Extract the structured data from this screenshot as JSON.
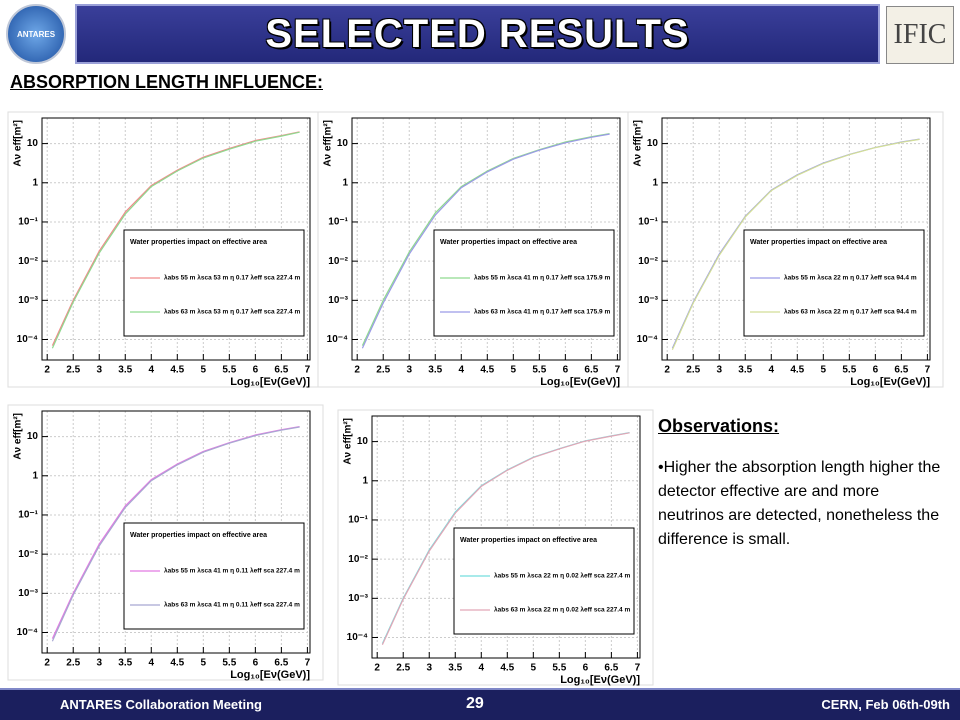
{
  "header": {
    "title": "SELECTED RESULTS",
    "logo_left": "ANTARES",
    "logo_right": "IFIC"
  },
  "section_title": "ABSORPTION LENGTH INFLUENCE:",
  "observations": {
    "title": "Observations:",
    "text": "•Higher the absorption length higher the detector effective are and more neutrinos are detected, nonetheless the difference is small."
  },
  "footer": {
    "left": "ANTARES Collaboration Meeting",
    "center": "29",
    "right": "CERN, Feb 06th-09th"
  },
  "chart_data": [
    {
      "type": "line",
      "log_y": true,
      "grid": true,
      "xlabel": "Log₁₀[Eν(GeV)]",
      "ylabel": "Aν eff[m²]",
      "legend_title": "Water properties impact on effective area",
      "xlim": [
        1.9,
        7.05
      ],
      "ylim": [
        3e-05,
        45
      ],
      "xticks": [
        2,
        2.5,
        3,
        3.5,
        4,
        4.5,
        5,
        5.5,
        6,
        6.5,
        7
      ],
      "yticks": [
        {
          "value": 0.0001,
          "label": "10⁻⁴"
        },
        {
          "value": 0.001,
          "label": "10⁻³"
        },
        {
          "value": 0.01,
          "label": "10⁻²"
        },
        {
          "value": 0.1,
          "label": "10⁻¹"
        },
        1,
        10
      ],
      "x": [
        2.1,
        2.5,
        3,
        3.5,
        4,
        4.5,
        5,
        5.5,
        6,
        6.5,
        6.85
      ],
      "series": [
        {
          "name": "λabs 55 m λsca 53 m η 0.17 λeff sca 227.4 m",
          "color": "#f08a8a",
          "values": [
            7e-05,
            0.001,
            0.018,
            0.18,
            0.85,
            2.1,
            4.5,
            7.5,
            12,
            16,
            20
          ]
        },
        {
          "name": "λabs 63 m λsca 53 m η 0.17 λeff sca 227.4 m",
          "color": "#8fd98f",
          "values": [
            6e-05,
            0.0009,
            0.016,
            0.16,
            0.8,
            2,
            4.3,
            7.2,
            11.5,
            15.5,
            19.5
          ]
        }
      ]
    },
    {
      "type": "line",
      "log_y": true,
      "grid": true,
      "xlabel": "Log₁₀[Eν(GeV)]",
      "ylabel": "Aν eff[m²]",
      "legend_title": "Water properties impact on effective area",
      "xlim": [
        1.9,
        7.05
      ],
      "ylim": [
        3e-05,
        45
      ],
      "xticks": [
        2,
        2.5,
        3,
        3.5,
        4,
        4.5,
        5,
        5.5,
        6,
        6.5,
        7
      ],
      "yticks": [
        {
          "value": 0.0001,
          "label": "10⁻⁴"
        },
        {
          "value": 0.001,
          "label": "10⁻³"
        },
        {
          "value": 0.01,
          "label": "10⁻²"
        },
        {
          "value": 0.1,
          "label": "10⁻¹"
        },
        1,
        10
      ],
      "x": [
        2.1,
        2.5,
        3,
        3.5,
        4,
        4.5,
        5,
        5.5,
        6,
        6.5,
        6.85
      ],
      "series": [
        {
          "name": "λabs 55 m λsca 41 m η 0.17 λeff sca 175.9 m",
          "color": "#8fd98f",
          "values": [
            7e-05,
            0.001,
            0.017,
            0.17,
            0.8,
            2,
            4.2,
            7,
            11,
            15,
            18
          ]
        },
        {
          "name": "λabs 63 m λsca 41 m η 0.17 λeff sca 175.9 m",
          "color": "#9a9ae6",
          "values": [
            6e-05,
            0.00085,
            0.015,
            0.15,
            0.75,
            1.9,
            4,
            6.8,
            10.5,
            14.5,
            17.5
          ]
        }
      ]
    },
    {
      "type": "line",
      "log_y": true,
      "grid": true,
      "xlabel": "Log₁₀[Eν(GeV)]",
      "ylabel": "Aν eff[m²]",
      "legend_title": "Water properties impact on effective area",
      "xlim": [
        1.9,
        7.05
      ],
      "ylim": [
        3e-05,
        45
      ],
      "xticks": [
        2,
        2.5,
        3,
        3.5,
        4,
        4.5,
        5,
        5.5,
        6,
        6.5,
        7
      ],
      "yticks": [
        {
          "value": 0.0001,
          "label": "10⁻⁴"
        },
        {
          "value": 0.001,
          "label": "10⁻³"
        },
        {
          "value": 0.01,
          "label": "10⁻²"
        },
        {
          "value": 0.1,
          "label": "10⁻¹"
        },
        1,
        10
      ],
      "x": [
        2.1,
        2.5,
        3,
        3.5,
        4,
        4.5,
        5,
        5.5,
        6,
        6.5,
        6.85
      ],
      "series": [
        {
          "name": "λabs 55 m λsca 22 m η 0.17 λeff sca 94.4 m",
          "color": "#9a9ae6",
          "values": [
            6e-05,
            0.0009,
            0.015,
            0.14,
            0.65,
            1.6,
            3.2,
            5.3,
            8,
            11,
            13
          ]
        },
        {
          "name": "λabs 63 m λsca 22 m η 0.17 λeff sca 94.4 m",
          "color": "#d2de96",
          "values": [
            5.5e-05,
            0.00085,
            0.014,
            0.135,
            0.63,
            1.55,
            3.1,
            5.2,
            7.9,
            10.8,
            12.8
          ]
        }
      ]
    },
    {
      "type": "line",
      "log_y": true,
      "grid": true,
      "xlabel": "Log₁₀[Eν(GeV)]",
      "ylabel": "Aν eff[m²]",
      "legend_title": "Water properties impact on effective area",
      "xlim": [
        1.9,
        7.05
      ],
      "ylim": [
        3e-05,
        45
      ],
      "xticks": [
        2,
        2.5,
        3,
        3.5,
        4,
        4.5,
        5,
        5.5,
        6,
        6.5,
        7
      ],
      "yticks": [
        {
          "value": 0.0001,
          "label": "10⁻⁴"
        },
        {
          "value": 0.001,
          "label": "10⁻³"
        },
        {
          "value": 0.01,
          "label": "10⁻²"
        },
        {
          "value": 0.1,
          "label": "10⁻¹"
        },
        1,
        10
      ],
      "x": [
        2.1,
        2.5,
        3,
        3.5,
        4,
        4.5,
        5,
        5.5,
        6,
        6.5,
        6.85
      ],
      "series": [
        {
          "name": "λabs 55 m λsca 41 m η 0.11 λeff sca 227.4 m",
          "color": "#e27ae2",
          "values": [
            7e-05,
            0.001,
            0.018,
            0.17,
            0.8,
            2,
            4.2,
            7,
            11,
            15,
            18
          ]
        },
        {
          "name": "λabs 63 m λsca 41 m η 0.11 λeff sca 227.4 m",
          "color": "#a8a8d2",
          "values": [
            6e-05,
            0.0009,
            0.016,
            0.155,
            0.75,
            1.9,
            4,
            6.8,
            10.6,
            14.6,
            17.6
          ]
        }
      ]
    },
    {
      "type": "line",
      "log_y": true,
      "grid": true,
      "xlabel": "Log₁₀[Eν(GeV)]",
      "ylabel": "Aν eff[m²]",
      "legend_title": "Water properties impact on effective area",
      "xlim": [
        1.9,
        7.05
      ],
      "ylim": [
        3e-05,
        45
      ],
      "xticks": [
        2,
        2.5,
        3,
        3.5,
        4,
        4.5,
        5,
        5.5,
        6,
        6.5,
        7
      ],
      "yticks": [
        {
          "value": 0.0001,
          "label": "10⁻⁴"
        },
        {
          "value": 0.001,
          "label": "10⁻³"
        },
        {
          "value": 0.01,
          "label": "10⁻²"
        },
        {
          "value": 0.1,
          "label": "10⁻¹"
        },
        1,
        10
      ],
      "x": [
        2.1,
        2.5,
        3,
        3.5,
        4,
        4.5,
        5,
        5.5,
        6,
        6.5,
        6.85
      ],
      "series": [
        {
          "name": "λabs 55 m λsca 22 m η 0.02 λeff sca 227.4 m",
          "color": "#74dede",
          "values": [
            7e-05,
            0.001,
            0.017,
            0.16,
            0.75,
            1.9,
            4,
            6.6,
            10.5,
            14,
            17
          ]
        },
        {
          "name": "λabs 63 m λsca 22 m η 0.02 λeff sca 227.4 m",
          "color": "#e2a6b6",
          "values": [
            6.5e-05,
            0.00095,
            0.016,
            0.15,
            0.72,
            1.85,
            3.9,
            6.5,
            10.3,
            13.8,
            16.8
          ]
        }
      ]
    }
  ]
}
